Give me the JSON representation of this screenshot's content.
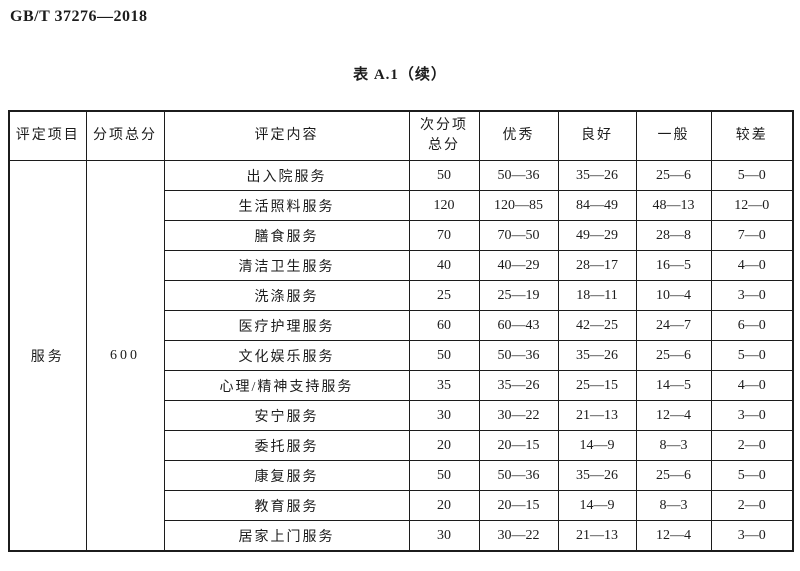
{
  "page": {
    "doc_number": "GB/T 37276—2018",
    "table_title": "表 A.1（续）"
  },
  "table": {
    "headers": {
      "col1": "评定项目",
      "col2": "分项总分",
      "col3": "评定内容",
      "col4_line1": "次分项",
      "col4_line2": "总分",
      "col5": "优秀",
      "col6": "良好",
      "col7": "一般",
      "col8": "较差"
    },
    "group": {
      "item": "服务",
      "total": "600"
    },
    "rows": [
      {
        "content": "出入院服务",
        "subtotal": "50",
        "excellent": "50—36",
        "good": "35—26",
        "average": "25—6",
        "poor": "5—0"
      },
      {
        "content": "生活照料服务",
        "subtotal": "120",
        "excellent": "120—85",
        "good": "84—49",
        "average": "48—13",
        "poor": "12—0"
      },
      {
        "content": "膳食服务",
        "subtotal": "70",
        "excellent": "70—50",
        "good": "49—29",
        "average": "28—8",
        "poor": "7—0"
      },
      {
        "content": "清洁卫生服务",
        "subtotal": "40",
        "excellent": "40—29",
        "good": "28—17",
        "average": "16—5",
        "poor": "4—0"
      },
      {
        "content": "洗涤服务",
        "subtotal": "25",
        "excellent": "25—19",
        "good": "18—11",
        "average": "10—4",
        "poor": "3—0"
      },
      {
        "content": "医疗护理服务",
        "subtotal": "60",
        "excellent": "60—43",
        "good": "42—25",
        "average": "24—7",
        "poor": "6—0"
      },
      {
        "content": "文化娱乐服务",
        "subtotal": "50",
        "excellent": "50—36",
        "good": "35—26",
        "average": "25—6",
        "poor": "5—0"
      },
      {
        "content": "心理/精神支持服务",
        "subtotal": "35",
        "excellent": "35—26",
        "good": "25—15",
        "average": "14—5",
        "poor": "4—0"
      },
      {
        "content": "安宁服务",
        "subtotal": "30",
        "excellent": "30—22",
        "good": "21—13",
        "average": "12—4",
        "poor": "3—0"
      },
      {
        "content": "委托服务",
        "subtotal": "20",
        "excellent": "20—15",
        "good": "14—9",
        "average": "8—3",
        "poor": "2—0"
      },
      {
        "content": "康复服务",
        "subtotal": "50",
        "excellent": "50—36",
        "good": "35—26",
        "average": "25—6",
        "poor": "5—0"
      },
      {
        "content": "教育服务",
        "subtotal": "20",
        "excellent": "20—15",
        "good": "14—9",
        "average": "8—3",
        "poor": "2—0"
      },
      {
        "content": "居家上门服务",
        "subtotal": "30",
        "excellent": "30—22",
        "good": "21—13",
        "average": "12—4",
        "poor": "3—0"
      }
    ]
  }
}
